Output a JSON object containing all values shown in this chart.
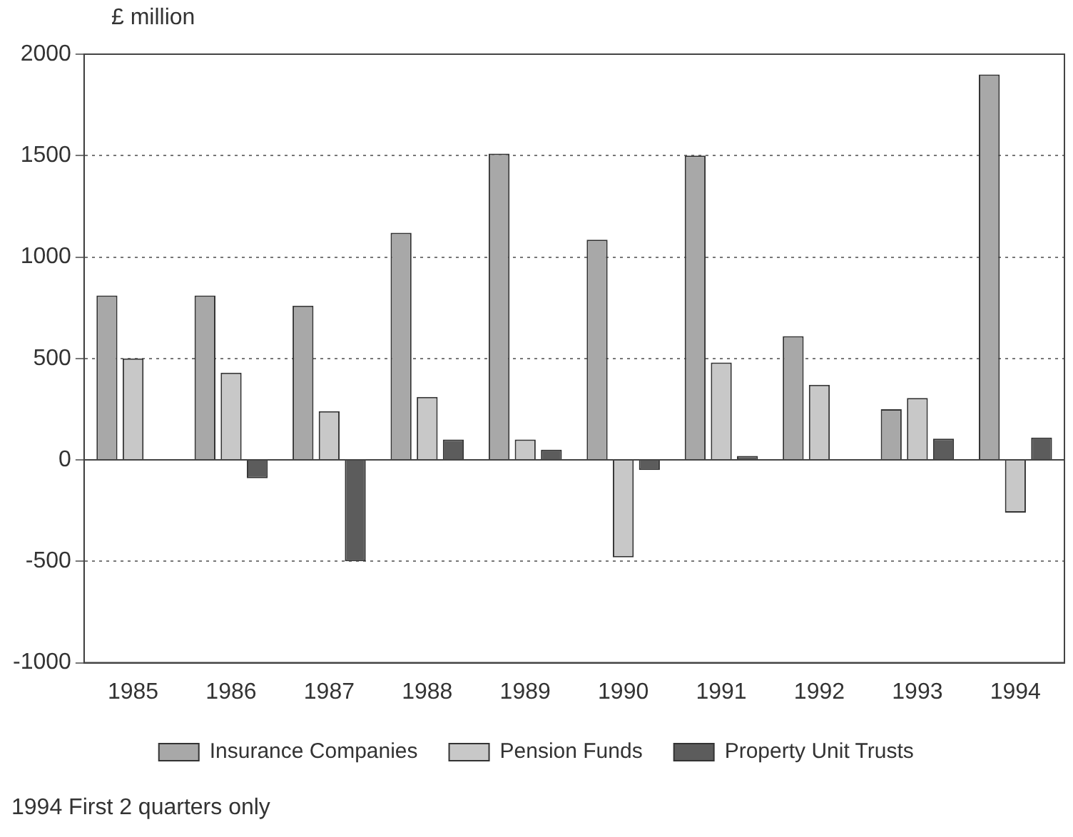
{
  "chart_data": {
    "type": "bar",
    "ylabel": "£ million",
    "categories": [
      "1985",
      "1986",
      "1987",
      "1988",
      "1989",
      "1990",
      "1991",
      "1992",
      "1993",
      "1994"
    ],
    "series": [
      {
        "name": "Insurance Companies",
        "color": "#a8a8a8",
        "values": [
          810,
          810,
          760,
          1120,
          1510,
          1085,
          1500,
          610,
          250,
          1900
        ]
      },
      {
        "name": "Pension Funds",
        "color": "#c8c8c8",
        "values": [
          500,
          430,
          240,
          310,
          100,
          -480,
          480,
          370,
          305,
          -260
        ]
      },
      {
        "name": "Property Unit Trusts",
        "color": "#5c5c5c",
        "values": [
          0,
          -90,
          -500,
          100,
          50,
          -50,
          20,
          0,
          105,
          110
        ]
      }
    ],
    "ylim": [
      -1000,
      2000
    ],
    "yticks": [
      -1000,
      -500,
      0,
      500,
      1000,
      1500,
      2000
    ],
    "grid": "y",
    "legend": "bottom",
    "annotations": [
      "1994 First 2 quarters only"
    ]
  }
}
